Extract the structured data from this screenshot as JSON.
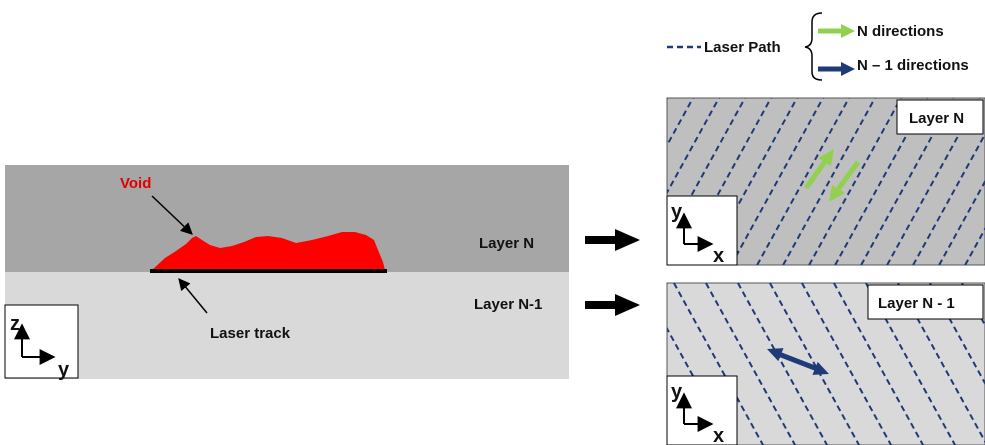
{
  "cross_section": {
    "void_label": "Void",
    "layer_n_label": "Layer N",
    "layer_n1_label": "Layer N-1",
    "laser_track_label": "Laser track",
    "axes": {
      "vertical": "z",
      "horizontal": "y"
    }
  },
  "legend": {
    "laser_path_label": "Laser Path",
    "n_directions_label": "N directions",
    "n1_directions_label": "N – 1 directions"
  },
  "top_view_n": {
    "label": "Layer N",
    "axes": {
      "vertical": "y",
      "horizontal": "x"
    }
  },
  "top_view_n1": {
    "label": "Layer N - 1",
    "axes": {
      "vertical": "y",
      "horizontal": "x"
    }
  },
  "colors": {
    "layer_n_fill": "#a6a6a6",
    "layer_n1_fill": "#d9d9d9",
    "top_n_fill": "#bfbfbf",
    "top_n1_fill": "#d9d9d9",
    "void_red": "#ff0000",
    "laser_path_blue": "#1f3a78",
    "n_direction_green": "#92d050",
    "n1_direction_navy": "#1f3a78"
  }
}
